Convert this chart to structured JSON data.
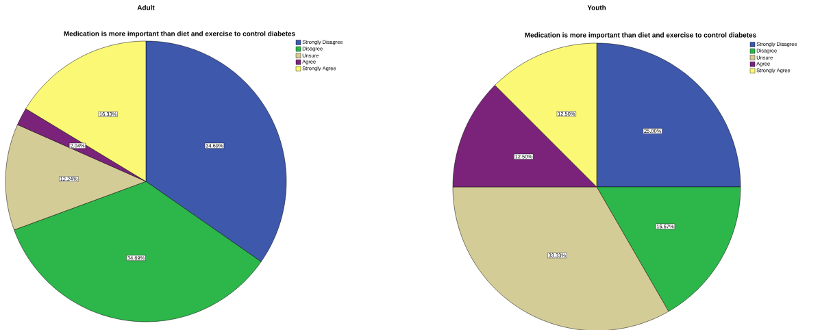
{
  "chart_data": [
    {
      "type": "pie",
      "title": "Adult",
      "subtitle": "Medication is more important than diet and exercise to control diabetes",
      "categories": [
        "Strongly Disagree",
        "Disagree",
        "Unsure",
        "Agree",
        "Strongly Agree"
      ],
      "values": [
        34.69,
        34.69,
        12.24,
        2.04,
        16.33
      ],
      "value_labels": [
        "34.69%",
        "34.69%",
        "12.24%",
        "2.04%",
        "16.33%"
      ],
      "colors": [
        "#3e58ac",
        "#2db64a",
        "#d4cc96",
        "#7b237a",
        "#fbf876"
      ],
      "legend": "top right"
    },
    {
      "type": "pie",
      "title": "Youth",
      "subtitle": "Medication is more important than diet and exercise to control diabetes",
      "categories": [
        "Strongly Disagree",
        "Disagree",
        "Unsure",
        "Agree",
        "Strongly Agree"
      ],
      "values": [
        25.0,
        16.67,
        33.33,
        12.5,
        12.5
      ],
      "value_labels": [
        "25.00%",
        "16.67%",
        "33.33%",
        "12.50%",
        "12.50%"
      ],
      "colors": [
        "#3e58ac",
        "#2db64a",
        "#d4cc96",
        "#7b237a",
        "#fbf876"
      ],
      "legend": "top right"
    }
  ]
}
